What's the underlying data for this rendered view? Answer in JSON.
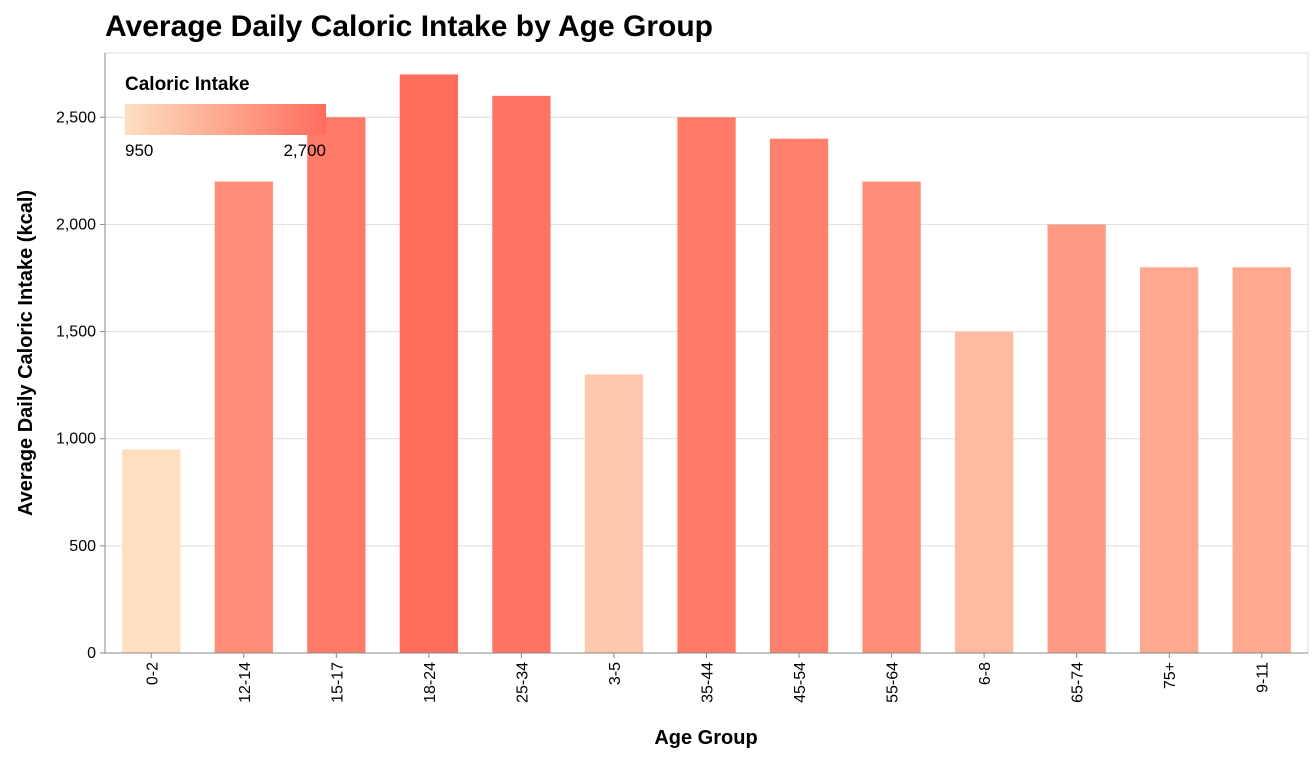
{
  "chart_data": {
    "type": "bar",
    "title": "Average Daily Caloric Intake by Age Group",
    "xlabel": "Age Group",
    "ylabel": "Average Daily Caloric Intake (kcal)",
    "categories": [
      "0-2",
      "12-14",
      "15-17",
      "18-24",
      "25-34",
      "3-5",
      "35-44",
      "45-54",
      "55-64",
      "6-8",
      "65-74",
      "75+",
      "9-11"
    ],
    "values": [
      950,
      2200,
      2500,
      2700,
      2600,
      1300,
      2500,
      2400,
      2200,
      1500,
      2000,
      1800,
      1800
    ],
    "ylim": [
      0,
      2800
    ],
    "yticks": [
      0,
      500,
      1000,
      1500,
      2000,
      2500
    ],
    "ytick_labels": [
      "0",
      "500",
      "1,000",
      "1,500",
      "2,000",
      "2,500"
    ],
    "grid": true,
    "legend": {
      "title": "Caloric Intake",
      "placement": "top-left",
      "min_label": "950",
      "max_label": "2,700",
      "min_value": 950,
      "max_value": 2700,
      "color_low": "#fedfc0",
      "color_high": "#ff6d5c"
    }
  }
}
